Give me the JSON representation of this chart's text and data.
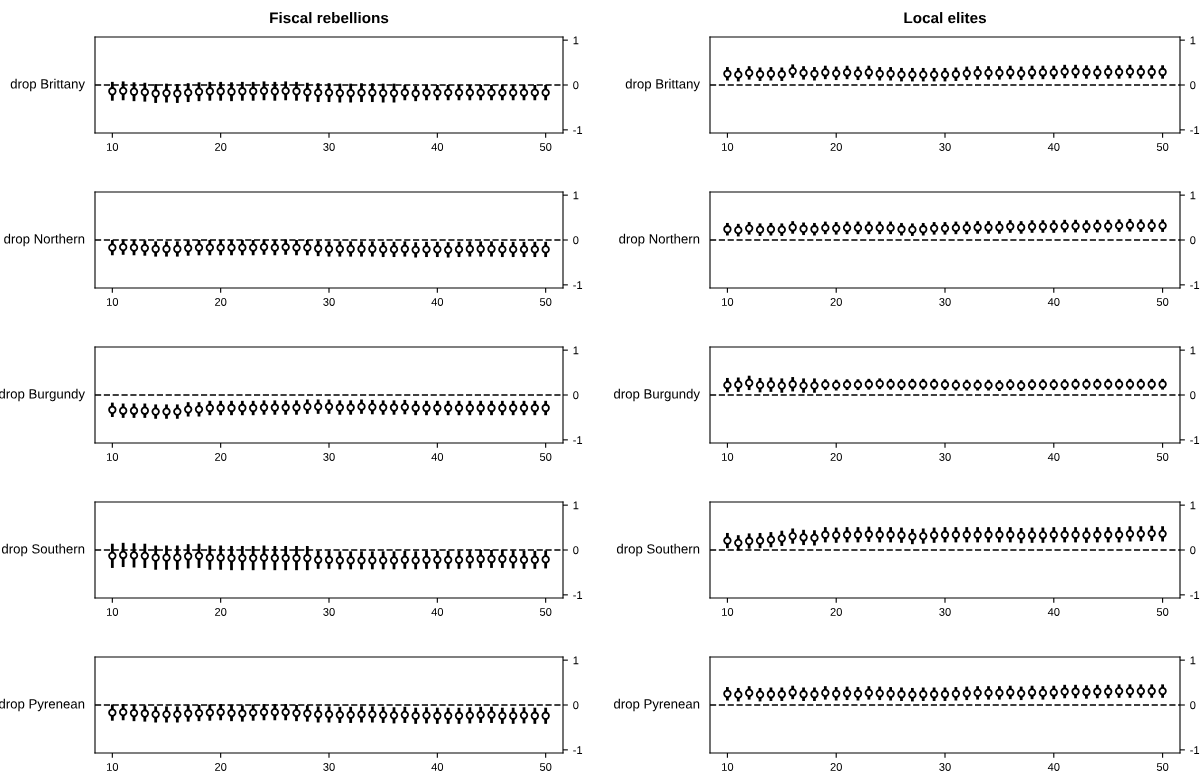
{
  "chart_data": [
    {
      "type": "scatter",
      "title": "Fiscal rebellions",
      "ylabel": "drop Brittany",
      "marker": "circle",
      "color": "#000000",
      "xlim": [
        8.4,
        51.6
      ],
      "xticks": [
        10,
        20,
        30,
        40,
        50
      ],
      "ylim": [
        -1.07,
        1.07
      ],
      "yticks": [
        -1,
        0,
        1
      ],
      "ref_lines": [
        {
          "axis": "y",
          "value": 0,
          "line_style": "dashed"
        }
      ],
      "x": [
        10,
        11,
        12,
        13,
        14,
        15,
        16,
        17,
        18,
        19,
        20,
        21,
        22,
        23,
        24,
        25,
        26,
        27,
        28,
        29,
        30,
        31,
        32,
        33,
        34,
        35,
        36,
        37,
        38,
        39,
        40,
        41,
        42,
        43,
        44,
        45,
        46,
        47,
        48,
        49,
        50
      ],
      "values": [
        -0.14,
        -0.13,
        -0.15,
        -0.16,
        -0.19,
        -0.18,
        -0.19,
        -0.17,
        -0.15,
        -0.14,
        -0.14,
        -0.15,
        -0.14,
        -0.14,
        -0.13,
        -0.14,
        -0.13,
        -0.14,
        -0.16,
        -0.17,
        -0.17,
        -0.18,
        -0.18,
        -0.17,
        -0.17,
        -0.18,
        -0.18,
        -0.17,
        -0.19,
        -0.17,
        -0.17,
        -0.17,
        -0.17,
        -0.17,
        -0.17,
        -0.17,
        -0.17,
        -0.17,
        -0.17,
        -0.17,
        -0.17
      ],
      "errors": [
        0.21,
        0.21,
        0.21,
        0.21,
        0.21,
        0.21,
        0.21,
        0.21,
        0.21,
        0.21,
        0.21,
        0.21,
        0.21,
        0.21,
        0.21,
        0.21,
        0.21,
        0.21,
        0.21,
        0.21,
        0.21,
        0.21,
        0.21,
        0.21,
        0.21,
        0.21,
        0.21,
        0.17,
        0.17,
        0.17,
        0.17,
        0.17,
        0.17,
        0.17,
        0.17,
        0.17,
        0.17,
        0.17,
        0.17,
        0.17,
        0.17
      ]
    },
    {
      "type": "scatter",
      "title": "Local elites",
      "ylabel": "drop Brittany",
      "marker": "circle",
      "color": "#000000",
      "xlim": [
        8.4,
        51.6
      ],
      "xticks": [
        10,
        20,
        30,
        40,
        50
      ],
      "ylim": [
        -1.07,
        1.07
      ],
      "yticks": [
        -1,
        0,
        1
      ],
      "ref_lines": [
        {
          "axis": "y",
          "value": 0,
          "line_style": "dashed"
        }
      ],
      "x": [
        10,
        11,
        12,
        13,
        14,
        15,
        16,
        17,
        18,
        19,
        20,
        21,
        22,
        23,
        24,
        25,
        26,
        27,
        28,
        29,
        30,
        31,
        32,
        33,
        34,
        35,
        36,
        37,
        38,
        39,
        40,
        41,
        42,
        43,
        44,
        45,
        46,
        47,
        48,
        49,
        50
      ],
      "values": [
        0.25,
        0.23,
        0.27,
        0.24,
        0.25,
        0.24,
        0.31,
        0.27,
        0.25,
        0.28,
        0.26,
        0.28,
        0.26,
        0.28,
        0.25,
        0.25,
        0.23,
        0.23,
        0.23,
        0.23,
        0.23,
        0.24,
        0.26,
        0.27,
        0.27,
        0.27,
        0.28,
        0.26,
        0.28,
        0.28,
        0.28,
        0.3,
        0.3,
        0.29,
        0.28,
        0.29,
        0.29,
        0.3,
        0.29,
        0.29,
        0.29
      ],
      "errors": [
        0.15,
        0.15,
        0.15,
        0.15,
        0.15,
        0.15,
        0.15,
        0.15,
        0.15,
        0.15,
        0.15,
        0.15,
        0.15,
        0.15,
        0.15,
        0.15,
        0.15,
        0.15,
        0.15,
        0.15,
        0.15,
        0.15,
        0.15,
        0.15,
        0.15,
        0.15,
        0.15,
        0.15,
        0.15,
        0.15,
        0.15,
        0.15,
        0.15,
        0.15,
        0.15,
        0.15,
        0.15,
        0.15,
        0.15,
        0.15,
        0.15
      ]
    },
    {
      "type": "scatter",
      "ylabel": "drop Northern",
      "marker": "circle",
      "color": "#000000",
      "xlim": [
        8.4,
        51.6
      ],
      "xticks": [
        10,
        20,
        30,
        40,
        50
      ],
      "ylim": [
        -1.07,
        1.07
      ],
      "yticks": [
        -1,
        0,
        1
      ],
      "ref_lines": [
        {
          "axis": "y",
          "value": 0,
          "line_style": "dashed"
        }
      ],
      "x": [
        10,
        11,
        12,
        13,
        14,
        15,
        16,
        17,
        18,
        19,
        20,
        21,
        22,
        23,
        24,
        25,
        26,
        27,
        28,
        29,
        30,
        31,
        32,
        33,
        34,
        35,
        36,
        37,
        38,
        39,
        40,
        41,
        42,
        43,
        44,
        45,
        46,
        47,
        48,
        49,
        50
      ],
      "values": [
        -0.17,
        -0.16,
        -0.17,
        -0.18,
        -0.2,
        -0.2,
        -0.2,
        -0.18,
        -0.17,
        -0.17,
        -0.17,
        -0.17,
        -0.17,
        -0.17,
        -0.16,
        -0.17,
        -0.16,
        -0.17,
        -0.17,
        -0.19,
        -0.2,
        -0.2,
        -0.2,
        -0.2,
        -0.2,
        -0.21,
        -0.21,
        -0.2,
        -0.22,
        -0.21,
        -0.21,
        -0.22,
        -0.21,
        -0.2,
        -0.2,
        -0.2,
        -0.21,
        -0.21,
        -0.21,
        -0.21,
        -0.21
      ],
      "errors": [
        0.17,
        0.17,
        0.17,
        0.17,
        0.17,
        0.17,
        0.17,
        0.17,
        0.17,
        0.17,
        0.17,
        0.17,
        0.17,
        0.17,
        0.17,
        0.17,
        0.17,
        0.17,
        0.17,
        0.17,
        0.17,
        0.17,
        0.17,
        0.17,
        0.17,
        0.17,
        0.17,
        0.17,
        0.17,
        0.17,
        0.17,
        0.17,
        0.17,
        0.17,
        0.17,
        0.17,
        0.17,
        0.17,
        0.17,
        0.17,
        0.17
      ]
    },
    {
      "type": "scatter",
      "ylabel": "drop Northern",
      "marker": "circle",
      "color": "#000000",
      "xlim": [
        8.4,
        51.6
      ],
      "xticks": [
        10,
        20,
        30,
        40,
        50
      ],
      "ylim": [
        -1.07,
        1.07
      ],
      "yticks": [
        -1,
        0,
        1
      ],
      "ref_lines": [
        {
          "axis": "y",
          "value": 0,
          "line_style": "dashed"
        }
      ],
      "x": [
        10,
        11,
        12,
        13,
        14,
        15,
        16,
        17,
        18,
        19,
        20,
        21,
        22,
        23,
        24,
        25,
        26,
        27,
        28,
        29,
        30,
        31,
        32,
        33,
        34,
        35,
        36,
        37,
        38,
        39,
        40,
        41,
        42,
        43,
        44,
        45,
        46,
        47,
        48,
        49,
        50
      ],
      "values": [
        0.24,
        0.22,
        0.26,
        0.23,
        0.24,
        0.23,
        0.28,
        0.25,
        0.24,
        0.27,
        0.26,
        0.27,
        0.27,
        0.27,
        0.27,
        0.27,
        0.24,
        0.23,
        0.24,
        0.26,
        0.26,
        0.27,
        0.27,
        0.28,
        0.28,
        0.28,
        0.3,
        0.28,
        0.3,
        0.3,
        0.3,
        0.31,
        0.31,
        0.3,
        0.31,
        0.31,
        0.32,
        0.33,
        0.32,
        0.32,
        0.32
      ],
      "errors": [
        0.14,
        0.14,
        0.14,
        0.14,
        0.14,
        0.14,
        0.14,
        0.14,
        0.14,
        0.14,
        0.14,
        0.14,
        0.14,
        0.14,
        0.14,
        0.14,
        0.14,
        0.14,
        0.14,
        0.14,
        0.14,
        0.14,
        0.14,
        0.14,
        0.14,
        0.14,
        0.14,
        0.14,
        0.14,
        0.14,
        0.14,
        0.14,
        0.14,
        0.14,
        0.14,
        0.14,
        0.14,
        0.14,
        0.14,
        0.14,
        0.14
      ]
    },
    {
      "type": "scatter",
      "ylabel": "drop Burgundy",
      "marker": "circle",
      "color": "#000000",
      "xlim": [
        8.4,
        51.6
      ],
      "xticks": [
        10,
        20,
        30,
        40,
        50
      ],
      "ylim": [
        -1.07,
        1.07
      ],
      "yticks": [
        -1,
        0,
        1
      ],
      "ref_lines": [
        {
          "axis": "y",
          "value": 0,
          "line_style": "dashed"
        }
      ],
      "x": [
        10,
        11,
        12,
        13,
        14,
        15,
        16,
        17,
        18,
        19,
        20,
        21,
        22,
        23,
        24,
        25,
        26,
        27,
        28,
        29,
        30,
        31,
        32,
        33,
        34,
        35,
        36,
        37,
        38,
        39,
        40,
        41,
        42,
        43,
        44,
        45,
        46,
        47,
        48,
        49,
        50
      ],
      "values": [
        -0.33,
        -0.35,
        -0.35,
        -0.35,
        -0.37,
        -0.37,
        -0.37,
        -0.32,
        -0.32,
        -0.29,
        -0.29,
        -0.29,
        -0.29,
        -0.29,
        -0.28,
        -0.28,
        -0.28,
        -0.28,
        -0.26,
        -0.26,
        -0.26,
        -0.28,
        -0.28,
        -0.26,
        -0.27,
        -0.28,
        -0.28,
        -0.27,
        -0.29,
        -0.29,
        -0.29,
        -0.29,
        -0.29,
        -0.29,
        -0.29,
        -0.29,
        -0.29,
        -0.29,
        -0.29,
        -0.29,
        -0.29
      ],
      "errors": [
        0.16,
        0.16,
        0.16,
        0.16,
        0.16,
        0.16,
        0.16,
        0.16,
        0.16,
        0.16,
        0.16,
        0.16,
        0.16,
        0.16,
        0.16,
        0.16,
        0.16,
        0.16,
        0.16,
        0.16,
        0.16,
        0.16,
        0.16,
        0.16,
        0.16,
        0.16,
        0.16,
        0.16,
        0.16,
        0.16,
        0.16,
        0.16,
        0.16,
        0.16,
        0.16,
        0.16,
        0.16,
        0.16,
        0.16,
        0.16,
        0.16
      ]
    },
    {
      "type": "scatter",
      "ylabel": "drop Burgundy",
      "marker": "circle",
      "color": "#000000",
      "xlim": [
        8.4,
        51.6
      ],
      "xticks": [
        10,
        20,
        30,
        40,
        50
      ],
      "ylim": [
        -1.07,
        1.07
      ],
      "yticks": [
        -1,
        0,
        1
      ],
      "ref_lines": [
        {
          "axis": "y",
          "value": 0,
          "line_style": "dashed"
        }
      ],
      "x": [
        10,
        11,
        12,
        13,
        14,
        15,
        16,
        17,
        18,
        19,
        20,
        21,
        22,
        23,
        24,
        25,
        26,
        27,
        28,
        29,
        30,
        31,
        32,
        33,
        34,
        35,
        36,
        37,
        38,
        39,
        40,
        41,
        42,
        43,
        44,
        45,
        46,
        47,
        48,
        49,
        50
      ],
      "values": [
        0.22,
        0.23,
        0.27,
        0.22,
        0.23,
        0.21,
        0.24,
        0.21,
        0.21,
        0.23,
        0.22,
        0.23,
        0.23,
        0.24,
        0.25,
        0.24,
        0.23,
        0.24,
        0.24,
        0.24,
        0.23,
        0.22,
        0.22,
        0.22,
        0.22,
        0.21,
        0.23,
        0.21,
        0.23,
        0.23,
        0.23,
        0.23,
        0.24,
        0.24,
        0.24,
        0.24,
        0.24,
        0.24,
        0.24,
        0.24,
        0.24
      ],
      "errors": [
        0.16,
        0.16,
        0.16,
        0.16,
        0.16,
        0.16,
        0.16,
        0.16,
        0.16,
        0.12,
        0.12,
        0.12,
        0.12,
        0.12,
        0.12,
        0.12,
        0.12,
        0.12,
        0.12,
        0.12,
        0.12,
        0.12,
        0.12,
        0.12,
        0.12,
        0.12,
        0.12,
        0.12,
        0.12,
        0.12,
        0.12,
        0.12,
        0.12,
        0.12,
        0.12,
        0.12,
        0.12,
        0.12,
        0.12,
        0.12,
        0.12
      ]
    },
    {
      "type": "scatter",
      "ylabel": "drop Southern",
      "marker": "circle",
      "color": "#000000",
      "xlim": [
        8.4,
        51.6
      ],
      "xticks": [
        10,
        20,
        30,
        40,
        50
      ],
      "ylim": [
        -1.07,
        1.07
      ],
      "yticks": [
        -1,
        0,
        1
      ],
      "ref_lines": [
        {
          "axis": "y",
          "value": 0,
          "line_style": "dashed"
        }
      ],
      "x": [
        10,
        11,
        12,
        13,
        14,
        15,
        16,
        17,
        18,
        19,
        20,
        21,
        22,
        23,
        24,
        25,
        26,
        27,
        28,
        29,
        30,
        31,
        32,
        33,
        34,
        35,
        36,
        37,
        38,
        39,
        40,
        41,
        42,
        43,
        44,
        45,
        46,
        47,
        48,
        49,
        50
      ],
      "values": [
        -0.13,
        -0.11,
        -0.12,
        -0.13,
        -0.17,
        -0.17,
        -0.17,
        -0.14,
        -0.13,
        -0.17,
        -0.17,
        -0.18,
        -0.18,
        -0.18,
        -0.17,
        -0.18,
        -0.18,
        -0.18,
        -0.18,
        -0.22,
        -0.22,
        -0.23,
        -0.23,
        -0.23,
        -0.23,
        -0.23,
        -0.23,
        -0.22,
        -0.23,
        -0.22,
        -0.22,
        -0.22,
        -0.22,
        -0.21,
        -0.2,
        -0.2,
        -0.2,
        -0.21,
        -0.22,
        -0.22,
        -0.21
      ],
      "errors": [
        0.27,
        0.27,
        0.27,
        0.27,
        0.27,
        0.27,
        0.27,
        0.27,
        0.27,
        0.27,
        0.27,
        0.27,
        0.27,
        0.27,
        0.27,
        0.27,
        0.27,
        0.27,
        0.27,
        0.2,
        0.2,
        0.2,
        0.2,
        0.2,
        0.2,
        0.2,
        0.2,
        0.2,
        0.2,
        0.2,
        0.2,
        0.2,
        0.2,
        0.2,
        0.2,
        0.2,
        0.2,
        0.2,
        0.2,
        0.2,
        0.2
      ]
    },
    {
      "type": "scatter",
      "ylabel": "drop Southern",
      "marker": "circle",
      "color": "#000000",
      "xlim": [
        8.4,
        51.6
      ],
      "xticks": [
        10,
        20,
        30,
        40,
        50
      ],
      "ylim": [
        -1.07,
        1.07
      ],
      "yticks": [
        -1,
        0,
        1
      ],
      "ref_lines": [
        {
          "axis": "y",
          "value": 0,
          "line_style": "dashed"
        }
      ],
      "x": [
        10,
        11,
        12,
        13,
        14,
        15,
        16,
        17,
        18,
        19,
        20,
        21,
        22,
        23,
        24,
        25,
        26,
        27,
        28,
        29,
        30,
        31,
        32,
        33,
        34,
        35,
        36,
        37,
        38,
        39,
        40,
        41,
        42,
        43,
        44,
        45,
        46,
        47,
        48,
        49,
        50
      ],
      "values": [
        0.21,
        0.16,
        0.2,
        0.21,
        0.23,
        0.26,
        0.31,
        0.28,
        0.27,
        0.34,
        0.33,
        0.34,
        0.34,
        0.35,
        0.34,
        0.34,
        0.33,
        0.3,
        0.31,
        0.33,
        0.34,
        0.34,
        0.34,
        0.34,
        0.34,
        0.34,
        0.34,
        0.32,
        0.33,
        0.33,
        0.34,
        0.34,
        0.34,
        0.33,
        0.34,
        0.34,
        0.34,
        0.36,
        0.36,
        0.37,
        0.36
      ],
      "errors": [
        0.17,
        0.17,
        0.17,
        0.17,
        0.17,
        0.17,
        0.17,
        0.17,
        0.17,
        0.17,
        0.17,
        0.17,
        0.17,
        0.17,
        0.17,
        0.17,
        0.17,
        0.17,
        0.17,
        0.17,
        0.17,
        0.17,
        0.17,
        0.17,
        0.17,
        0.17,
        0.17,
        0.17,
        0.17,
        0.17,
        0.17,
        0.17,
        0.17,
        0.17,
        0.17,
        0.17,
        0.17,
        0.17,
        0.17,
        0.17,
        0.17
      ]
    },
    {
      "type": "scatter",
      "ylabel": "drop Pyrenean",
      "marker": "circle",
      "color": "#000000",
      "xlim": [
        8.4,
        51.6
      ],
      "xticks": [
        10,
        20,
        30,
        40,
        50
      ],
      "ylim": [
        -1.07,
        1.07
      ],
      "yticks": [
        -1,
        0,
        1
      ],
      "ref_lines": [
        {
          "axis": "y",
          "value": 0,
          "line_style": "dashed"
        }
      ],
      "x": [
        10,
        11,
        12,
        13,
        14,
        15,
        16,
        17,
        18,
        19,
        20,
        21,
        22,
        23,
        24,
        25,
        26,
        27,
        28,
        29,
        30,
        31,
        32,
        33,
        34,
        35,
        36,
        37,
        38,
        39,
        40,
        41,
        42,
        43,
        44,
        45,
        46,
        47,
        48,
        49,
        50
      ],
      "values": [
        -0.17,
        -0.16,
        -0.18,
        -0.19,
        -0.21,
        -0.21,
        -0.21,
        -0.19,
        -0.18,
        -0.17,
        -0.16,
        -0.18,
        -0.19,
        -0.17,
        -0.16,
        -0.16,
        -0.16,
        -0.18,
        -0.19,
        -0.21,
        -0.21,
        -0.22,
        -0.22,
        -0.21,
        -0.21,
        -0.22,
        -0.23,
        -0.22,
        -0.24,
        -0.23,
        -0.24,
        -0.24,
        -0.24,
        -0.23,
        -0.22,
        -0.22,
        -0.24,
        -0.24,
        -0.23,
        -0.24,
        -0.24
      ],
      "errors": [
        0.18,
        0.18,
        0.18,
        0.18,
        0.18,
        0.18,
        0.18,
        0.18,
        0.18,
        0.18,
        0.18,
        0.18,
        0.18,
        0.18,
        0.18,
        0.18,
        0.18,
        0.18,
        0.18,
        0.18,
        0.18,
        0.18,
        0.18,
        0.18,
        0.18,
        0.18,
        0.18,
        0.18,
        0.18,
        0.18,
        0.18,
        0.18,
        0.18,
        0.18,
        0.18,
        0.18,
        0.18,
        0.18,
        0.18,
        0.18,
        0.18
      ]
    },
    {
      "type": "scatter",
      "ylabel": "drop Pyrenean",
      "marker": "circle",
      "color": "#000000",
      "xlim": [
        8.4,
        51.6
      ],
      "xticks": [
        10,
        20,
        30,
        40,
        50
      ],
      "ylim": [
        -1.07,
        1.07
      ],
      "yticks": [
        -1,
        0,
        1
      ],
      "ref_lines": [
        {
          "axis": "y",
          "value": 0,
          "line_style": "dashed"
        }
      ],
      "x": [
        10,
        11,
        12,
        13,
        14,
        15,
        16,
        17,
        18,
        19,
        20,
        21,
        22,
        23,
        24,
        25,
        26,
        27,
        28,
        29,
        30,
        31,
        32,
        33,
        34,
        35,
        36,
        37,
        38,
        39,
        40,
        41,
        42,
        43,
        44,
        45,
        46,
        47,
        48,
        49,
        50
      ],
      "values": [
        0.25,
        0.23,
        0.27,
        0.23,
        0.24,
        0.24,
        0.28,
        0.24,
        0.24,
        0.27,
        0.25,
        0.26,
        0.25,
        0.27,
        0.26,
        0.25,
        0.24,
        0.23,
        0.24,
        0.24,
        0.24,
        0.25,
        0.26,
        0.27,
        0.27,
        0.27,
        0.28,
        0.26,
        0.28,
        0.27,
        0.28,
        0.3,
        0.3,
        0.29,
        0.3,
        0.3,
        0.31,
        0.31,
        0.31,
        0.31,
        0.31
      ],
      "errors": [
        0.15,
        0.15,
        0.15,
        0.15,
        0.15,
        0.15,
        0.15,
        0.15,
        0.15,
        0.15,
        0.15,
        0.15,
        0.15,
        0.15,
        0.15,
        0.15,
        0.15,
        0.15,
        0.15,
        0.15,
        0.15,
        0.15,
        0.15,
        0.15,
        0.15,
        0.15,
        0.15,
        0.15,
        0.15,
        0.15,
        0.15,
        0.15,
        0.15,
        0.15,
        0.15,
        0.15,
        0.15,
        0.15,
        0.15,
        0.15,
        0.15
      ]
    }
  ]
}
